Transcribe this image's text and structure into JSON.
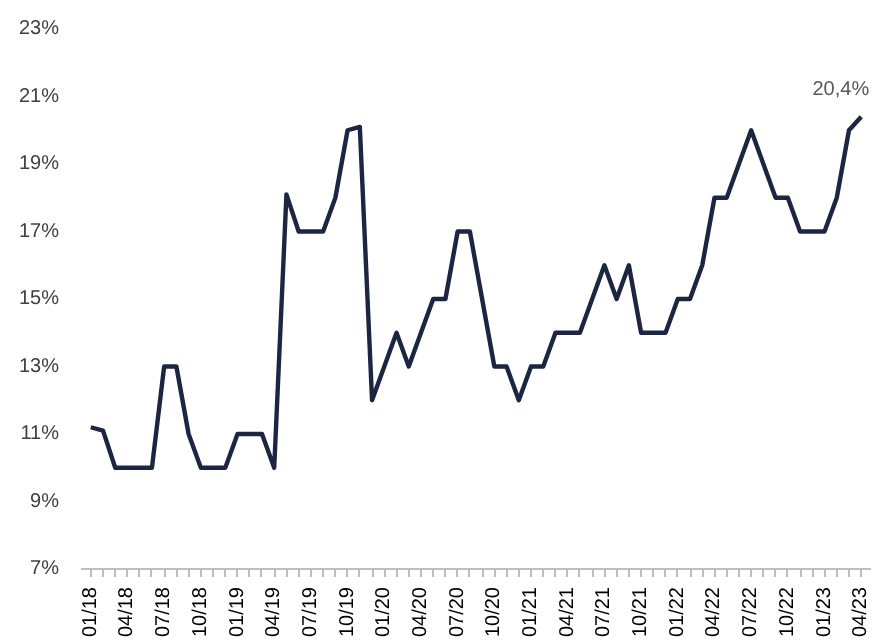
{
  "chart_data": {
    "type": "line",
    "categories": [
      "01/18",
      null,
      null,
      "04/18",
      null,
      null,
      "07/18",
      null,
      null,
      "10/18",
      null,
      null,
      "01/19",
      null,
      null,
      "04/19",
      null,
      null,
      "07/19",
      null,
      null,
      "10/19",
      null,
      null,
      "01/20",
      null,
      null,
      "04/20",
      null,
      null,
      "07/20",
      null,
      null,
      "10/20",
      null,
      null,
      "01/21",
      null,
      null,
      "04/21",
      null,
      null,
      "07/21",
      null,
      null,
      "10/21",
      null,
      null,
      "01/22",
      null,
      null,
      "04/22",
      null,
      null,
      "07/22",
      null,
      null,
      "10/22",
      null,
      null,
      "01/23",
      null,
      null,
      "04/23"
    ],
    "series": [
      {
        "color": "#1c2541",
        "values": [
          11.2,
          11.1,
          10,
          10,
          10,
          10,
          13,
          13,
          11,
          10,
          10,
          10,
          11,
          11,
          11,
          10,
          18.1,
          17,
          17,
          17,
          18,
          20,
          20.1,
          12,
          13,
          14,
          13,
          14,
          15,
          15,
          17,
          17,
          15,
          13,
          13,
          12,
          13,
          13,
          14,
          14,
          14,
          15,
          16,
          15,
          16,
          14,
          14,
          14,
          15,
          15,
          16,
          18,
          18,
          19,
          20,
          19,
          18,
          18,
          17,
          17,
          17,
          18,
          20,
          20.4
        ],
        "value_labels": [
          null,
          null,
          null,
          null,
          null,
          null,
          null,
          null,
          null,
          null,
          null,
          null,
          null,
          null,
          null,
          null,
          null,
          null,
          null,
          null,
          null,
          null,
          null,
          null,
          null,
          null,
          null,
          null,
          null,
          null,
          null,
          null,
          null,
          null,
          null,
          null,
          null,
          null,
          null,
          null,
          null,
          null,
          null,
          null,
          null,
          null,
          null,
          null,
          null,
          null,
          null,
          null,
          null,
          null,
          null,
          null,
          null,
          null,
          null,
          null,
          null,
          null,
          null,
          "20,4%"
        ]
      }
    ],
    "ylim": [
      7,
      23
    ],
    "yticks": [
      {
        "value": 7,
        "label": "7%"
      },
      {
        "value": 9,
        "label": "9%"
      },
      {
        "value": 11,
        "label": "11%"
      },
      {
        "value": 13,
        "label": "13%"
      },
      {
        "value": 15,
        "label": "15%"
      },
      {
        "value": 17,
        "label": "17%"
      },
      {
        "value": 19,
        "label": "19%"
      },
      {
        "value": 21,
        "label": "21%"
      },
      {
        "value": 23,
        "label": "23%"
      }
    ],
    "grid": false,
    "marker": "none",
    "line_style": "solid"
  }
}
